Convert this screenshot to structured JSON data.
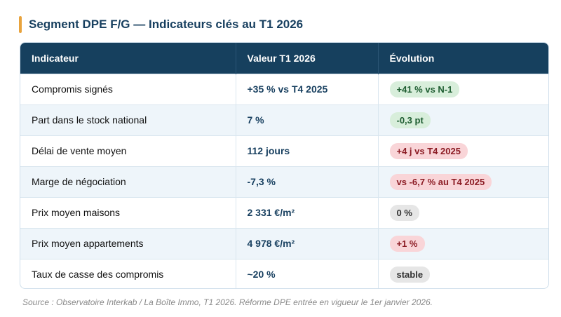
{
  "title": "Segment DPE F/G — Indicateurs clés au T1 2026",
  "table": {
    "headers": [
      "Indicateur",
      "Valeur T1 2026",
      "Évolution"
    ],
    "rows": [
      [
        "Compromis signés",
        "+35 % vs T4 2025",
        "+41 % vs N-1"
      ],
      [
        "Part dans le stock national",
        "7 %",
        "-0,3 pt"
      ],
      [
        "Délai de vente moyen",
        "112 jours",
        "+4 j vs T4 2025"
      ],
      [
        "Marge de négociation",
        "-7,3 %",
        "vs -6,7 % au T4 2025"
      ],
      [
        "Prix moyen maisons",
        "2 331 €/m²",
        "0 %"
      ],
      [
        "Prix moyen appartements",
        "4 978 €/m²",
        "+1 %"
      ],
      [
        "Taux de casse des compromis",
        "~20 %",
        "stable"
      ]
    ],
    "badge_styles": [
      {
        "bg": "#d8eedb",
        "fg": "#1d5c30"
      },
      {
        "bg": "#d8eedb",
        "fg": "#1d5c30"
      },
      {
        "bg": "#f9d5d8",
        "fg": "#8c1c24"
      },
      {
        "bg": "#f9d5d8",
        "fg": "#8c1c24"
      },
      {
        "bg": "#e6e6e6",
        "fg": "#333333"
      },
      {
        "bg": "#f9d5d8",
        "fg": "#8c1c24"
      },
      {
        "bg": "#e6e6e6",
        "fg": "#333333"
      }
    ]
  },
  "source": "Source : Observatoire Interkab / La Boîte Immo, T1 2026. Réforme DPE entrée en vigueur le 1er janvier 2026."
}
